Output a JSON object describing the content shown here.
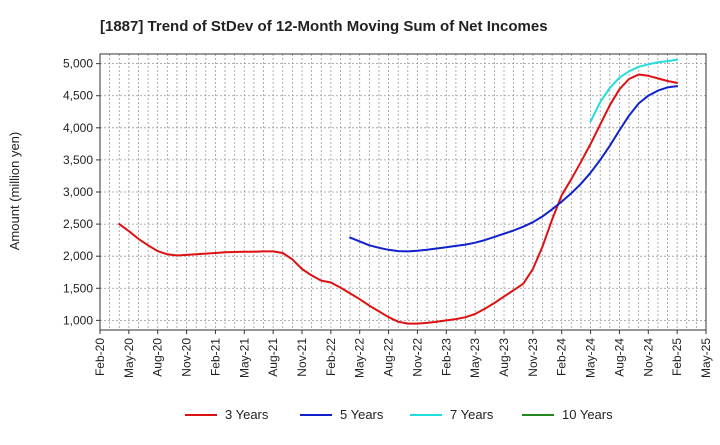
{
  "chart_data": {
    "type": "line",
    "title": "[1887]  Trend of StDev of 12-Month Moving Sum of Net Incomes",
    "ylabel": "Amount (million yen)",
    "xlabel": "",
    "ylim": [
      850,
      5150
    ],
    "yticks": [
      1000,
      1500,
      2000,
      2500,
      3000,
      3500,
      4000,
      4500,
      5000
    ],
    "ytick_labels": [
      "1,000",
      "1,500",
      "2,000",
      "2,500",
      "3,000",
      "3,500",
      "4,000",
      "4,500",
      "5,000"
    ],
    "xlim": [
      "2020-02",
      "2025-05"
    ],
    "xticks": [
      "2020-02",
      "2020-05",
      "2020-08",
      "2020-11",
      "2021-02",
      "2021-05",
      "2021-08",
      "2021-11",
      "2022-02",
      "2022-05",
      "2022-08",
      "2022-11",
      "2023-02",
      "2023-05",
      "2023-08",
      "2023-11",
      "2024-02",
      "2024-05",
      "2024-08",
      "2024-11",
      "2025-02",
      "2025-05"
    ],
    "xtick_labels": [
      "Feb-20",
      "May-20",
      "Aug-20",
      "Nov-20",
      "Feb-21",
      "May-21",
      "Aug-21",
      "Nov-21",
      "Feb-22",
      "May-22",
      "Aug-22",
      "Nov-22",
      "Feb-23",
      "May-23",
      "Aug-23",
      "Nov-23",
      "Feb-24",
      "May-24",
      "Aug-24",
      "Nov-24",
      "Feb-25",
      "May-25"
    ],
    "grid": true,
    "legend_position": "bottom",
    "series": [
      {
        "name": "3 Years",
        "color": "#dd1111",
        "x": [
          "2020-04",
          "2020-05",
          "2020-06",
          "2020-07",
          "2020-08",
          "2020-09",
          "2020-10",
          "2020-11",
          "2020-12",
          "2021-01",
          "2021-02",
          "2021-03",
          "2021-04",
          "2021-05",
          "2021-06",
          "2021-07",
          "2021-08",
          "2021-09",
          "2021-10",
          "2021-11",
          "2021-12",
          "2022-01",
          "2022-02",
          "2022-03",
          "2022-04",
          "2022-05",
          "2022-06",
          "2022-07",
          "2022-08",
          "2022-09",
          "2022-10",
          "2022-11",
          "2022-12",
          "2023-01",
          "2023-02",
          "2023-03",
          "2023-04",
          "2023-05",
          "2023-06",
          "2023-07",
          "2023-08",
          "2023-09",
          "2023-10",
          "2023-11",
          "2023-12",
          "2024-01",
          "2024-02",
          "2024-03",
          "2024-04",
          "2024-05",
          "2024-06",
          "2024-07",
          "2024-08",
          "2024-09",
          "2024-10",
          "2024-11",
          "2024-12",
          "2025-01",
          "2025-02"
        ],
        "values": [
          2500,
          2390,
          2270,
          2170,
          2080,
          2030,
          2010,
          2020,
          2030,
          2040,
          2050,
          2060,
          2065,
          2070,
          2070,
          2075,
          2075,
          2050,
          1950,
          1800,
          1700,
          1620,
          1590,
          1510,
          1420,
          1330,
          1230,
          1140,
          1050,
          980,
          950,
          950,
          960,
          980,
          1000,
          1020,
          1050,
          1100,
          1180,
          1270,
          1370,
          1470,
          1570,
          1800,
          2150,
          2570,
          2950,
          3200,
          3470,
          3750,
          4050,
          4350,
          4600,
          4760,
          4830,
          4810,
          4770,
          4730,
          4700
        ]
      },
      {
        "name": "5 Years",
        "color": "#1122cc",
        "x": [
          "2022-04",
          "2022-05",
          "2022-06",
          "2022-07",
          "2022-08",
          "2022-09",
          "2022-10",
          "2022-11",
          "2022-12",
          "2023-01",
          "2023-02",
          "2023-03",
          "2023-04",
          "2023-05",
          "2023-06",
          "2023-07",
          "2023-08",
          "2023-09",
          "2023-10",
          "2023-11",
          "2023-12",
          "2024-01",
          "2024-02",
          "2024-03",
          "2024-04",
          "2024-05",
          "2024-06",
          "2024-07",
          "2024-08",
          "2024-09",
          "2024-10",
          "2024-11",
          "2024-12",
          "2025-01",
          "2025-02"
        ],
        "values": [
          2290,
          2230,
          2170,
          2130,
          2100,
          2080,
          2075,
          2085,
          2100,
          2120,
          2140,
          2160,
          2180,
          2210,
          2250,
          2300,
          2350,
          2400,
          2460,
          2530,
          2620,
          2730,
          2850,
          2980,
          3130,
          3300,
          3500,
          3720,
          3960,
          4190,
          4380,
          4500,
          4580,
          4630,
          4650
        ]
      },
      {
        "name": "7 Years",
        "color": "#22dddd",
        "x": [
          "2024-05",
          "2024-06",
          "2024-07",
          "2024-08",
          "2024-09",
          "2024-10",
          "2024-11",
          "2024-12",
          "2025-01",
          "2025-02"
        ],
        "values": [
          4100,
          4400,
          4620,
          4780,
          4880,
          4950,
          4990,
          5020,
          5040,
          5060
        ]
      },
      {
        "name": "10 Years",
        "color": "#228822",
        "x": [],
        "values": []
      }
    ]
  }
}
